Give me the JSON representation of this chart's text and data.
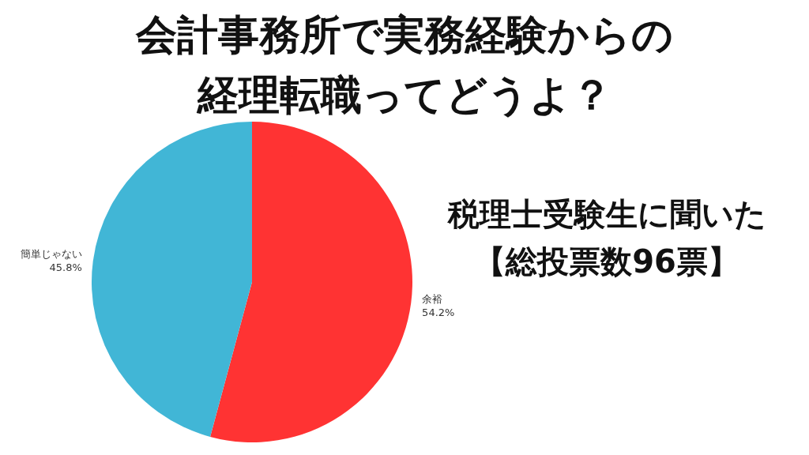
{
  "chart_data": {
    "type": "pie",
    "title": "会計事務所で実務経験からの経理転職ってどうよ？",
    "subtitle": "税理士受験生に聞いた【総投票数96票】",
    "categories": [
      "余裕",
      "簡単じゃない"
    ],
    "values": [
      54.2,
      45.8
    ],
    "colors": [
      "#ff3333",
      "#41b6d6"
    ],
    "value_labels": [
      "54.2%",
      "45.8%"
    ]
  }
}
